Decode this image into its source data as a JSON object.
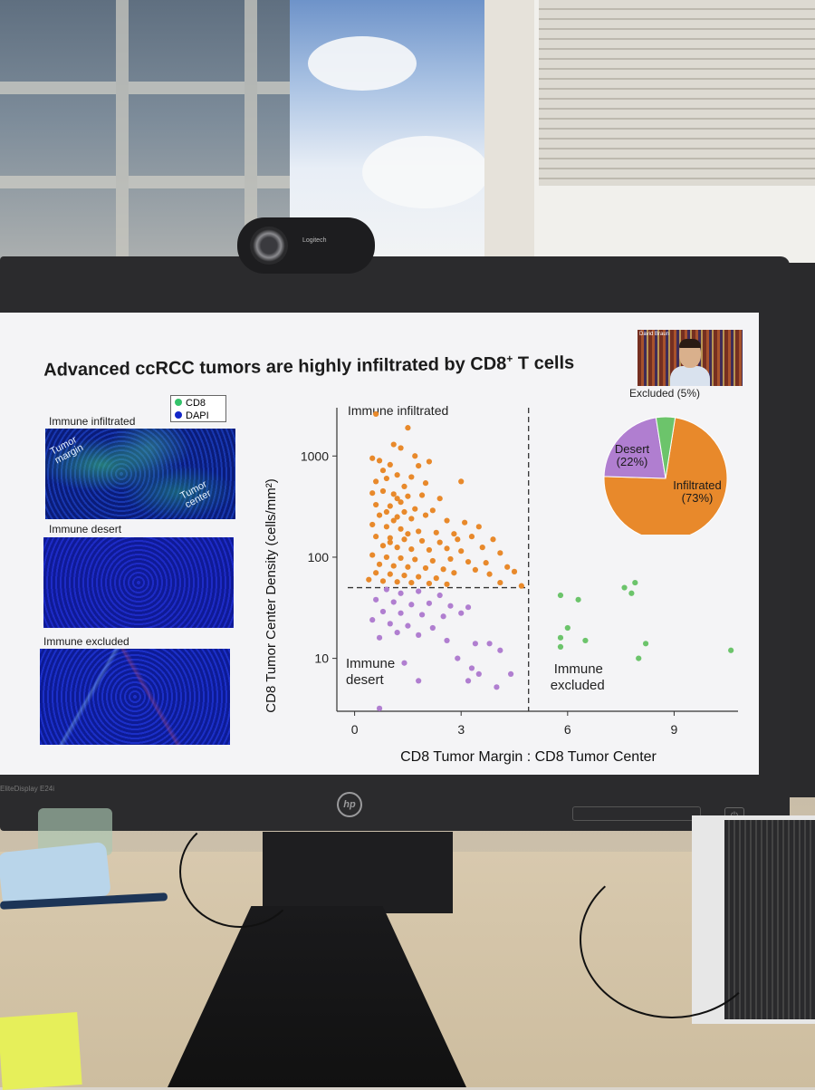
{
  "slide": {
    "title_main": "Advanced ccRCC tumors are highly infiltrated by CD8",
    "title_sup": "+",
    "title_end": " T cells",
    "legend": [
      {
        "label": "CD8",
        "color": "#33c26a"
      },
      {
        "label": "DAPI",
        "color": "#1326c8"
      }
    ],
    "panels": {
      "infiltrated_label": "Immune infiltrated",
      "infiltrated_margin": "Tumor margin",
      "infiltrated_center": "Tumor center",
      "desert_label": "Immune desert",
      "excluded_label": "Immune excluded"
    },
    "presenter_name": "David Braun"
  },
  "monitor": {
    "model": "EliteDisplay E24i",
    "brand_logo": "hp"
  },
  "webcam": {
    "brand": "Logitech"
  },
  "chart_data": [
    {
      "type": "scatter",
      "xlabel": "CD8 Tumor Margin : CD8 Tumor Center",
      "ylabel": "CD8 Tumor Center Density (cells/mm²)",
      "x_ticks": [
        0,
        3,
        6,
        9
      ],
      "xlim": [
        -0.5,
        10.8
      ],
      "y_ticks": [
        10,
        100,
        1000
      ],
      "ylim": [
        3,
        3000
      ],
      "y_scale": "log",
      "thresholds": {
        "x": 4.9,
        "y": 50
      },
      "region_labels": {
        "infiltrated": "Immune infiltrated",
        "desert": "Immune desert",
        "excluded": "Immune excluded"
      },
      "series": [
        {
          "name": "Infiltrated",
          "color": "#e8892b",
          "points": [
            [
              0.6,
              2600
            ],
            [
              1.5,
              1900
            ],
            [
              1.1,
              1300
            ],
            [
              1.3,
              1200
            ],
            [
              0.5,
              950
            ],
            [
              0.7,
              900
            ],
            [
              1.7,
              1000
            ],
            [
              1.0,
              820
            ],
            [
              1.8,
              800
            ],
            [
              0.8,
              720
            ],
            [
              2.1,
              880
            ],
            [
              3.0,
              560
            ],
            [
              0.9,
              600
            ],
            [
              1.2,
              650
            ],
            [
              1.6,
              620
            ],
            [
              0.6,
              560
            ],
            [
              1.4,
              500
            ],
            [
              2.0,
              540
            ],
            [
              0.5,
              430
            ],
            [
              0.8,
              450
            ],
            [
              1.1,
              420
            ],
            [
              1.5,
              400
            ],
            [
              1.9,
              410
            ],
            [
              2.4,
              380
            ],
            [
              0.6,
              330
            ],
            [
              1.0,
              320
            ],
            [
              1.3,
              350
            ],
            [
              1.7,
              300
            ],
            [
              2.2,
              290
            ],
            [
              0.7,
              260
            ],
            [
              1.2,
              250
            ],
            [
              1.6,
              240
            ],
            [
              2.0,
              260
            ],
            [
              2.6,
              230
            ],
            [
              3.1,
              220
            ],
            [
              0.5,
              210
            ],
            [
              0.9,
              200
            ],
            [
              1.3,
              190
            ],
            [
              1.8,
              180
            ],
            [
              2.3,
              175
            ],
            [
              2.8,
              170
            ],
            [
              3.5,
              200
            ],
            [
              0.6,
              160
            ],
            [
              1.0,
              155
            ],
            [
              1.4,
              150
            ],
            [
              1.9,
              145
            ],
            [
              2.4,
              140
            ],
            [
              2.9,
              150
            ],
            [
              3.3,
              160
            ],
            [
              3.9,
              150
            ],
            [
              0.8,
              130
            ],
            [
              1.2,
              125
            ],
            [
              1.6,
              120
            ],
            [
              2.1,
              118
            ],
            [
              2.6,
              122
            ],
            [
              3.0,
              115
            ],
            [
              3.6,
              125
            ],
            [
              4.1,
              110
            ],
            [
              0.5,
              105
            ],
            [
              0.9,
              100
            ],
            [
              1.3,
              98
            ],
            [
              1.7,
              95
            ],
            [
              2.2,
              92
            ],
            [
              2.7,
              96
            ],
            [
              3.2,
              90
            ],
            [
              3.7,
              88
            ],
            [
              0.7,
              85
            ],
            [
              1.1,
              82
            ],
            [
              1.5,
              80
            ],
            [
              2.0,
              78
            ],
            [
              2.5,
              76
            ],
            [
              3.4,
              75
            ],
            [
              4.3,
              80
            ],
            [
              0.6,
              70
            ],
            [
              1.0,
              68
            ],
            [
              1.4,
              66
            ],
            [
              1.8,
              64
            ],
            [
              2.3,
              62
            ],
            [
              2.8,
              70
            ],
            [
              3.8,
              68
            ],
            [
              4.5,
              72
            ],
            [
              0.4,
              60
            ],
            [
              0.8,
              58
            ],
            [
              1.2,
              57
            ],
            [
              1.6,
              56
            ],
            [
              2.1,
              55
            ],
            [
              2.6,
              54
            ],
            [
              4.1,
              56
            ],
            [
              4.7,
              52
            ],
            [
              1.0,
              140
            ],
            [
              1.5,
              170
            ],
            [
              1.1,
              230
            ],
            [
              0.9,
              280
            ],
            [
              1.4,
              280
            ],
            [
              1.2,
              380
            ]
          ]
        },
        {
          "name": "Desert",
          "color": "#b07ed0",
          "points": [
            [
              0.9,
              48
            ],
            [
              1.3,
              44
            ],
            [
              1.8,
              46
            ],
            [
              2.4,
              42
            ],
            [
              0.6,
              38
            ],
            [
              1.1,
              36
            ],
            [
              1.6,
              34
            ],
            [
              2.1,
              35
            ],
            [
              2.7,
              33
            ],
            [
              3.2,
              32
            ],
            [
              0.8,
              29
            ],
            [
              1.3,
              28
            ],
            [
              1.9,
              27
            ],
            [
              2.5,
              26
            ],
            [
              3.0,
              28
            ],
            [
              0.5,
              24
            ],
            [
              1.0,
              22
            ],
            [
              1.5,
              21
            ],
            [
              2.2,
              20
            ],
            [
              1.2,
              18
            ],
            [
              1.8,
              17
            ],
            [
              0.7,
              16
            ],
            [
              2.6,
              15
            ],
            [
              3.4,
              14
            ],
            [
              3.8,
              14
            ],
            [
              4.1,
              12
            ],
            [
              3.3,
              8
            ],
            [
              3.5,
              7
            ],
            [
              4.4,
              7
            ],
            [
              1.8,
              6
            ],
            [
              3.2,
              6
            ],
            [
              4.0,
              5.2
            ],
            [
              0.7,
              3.2
            ],
            [
              1.4,
              9
            ],
            [
              2.9,
              10
            ]
          ]
        },
        {
          "name": "Excluded",
          "color": "#6cc46b",
          "points": [
            [
              5.8,
              42
            ],
            [
              6.3,
              38
            ],
            [
              7.6,
              50
            ],
            [
              7.9,
              56
            ],
            [
              7.8,
              44
            ],
            [
              6.0,
              20
            ],
            [
              5.8,
              16
            ],
            [
              6.5,
              15
            ],
            [
              5.8,
              13
            ],
            [
              8.2,
              14
            ],
            [
              8.0,
              10
            ],
            [
              10.6,
              12
            ]
          ]
        }
      ]
    },
    {
      "type": "pie",
      "labels": [
        "Infiltrated",
        "Desert",
        "Excluded"
      ],
      "label_text": [
        "Infiltrated\n(73%)",
        "Desert\n(22%)",
        "Excluded (5%)"
      ],
      "values": [
        73,
        22,
        5
      ],
      "colors": [
        "#e8892b",
        "#b07ed0",
        "#6cc46b"
      ]
    }
  ]
}
